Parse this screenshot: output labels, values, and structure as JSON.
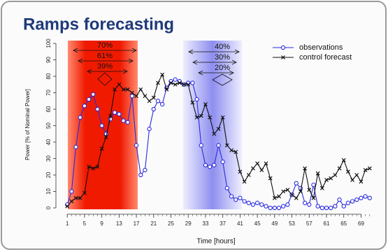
{
  "chart_data": {
    "type": "line",
    "title": "Ramps forecasting",
    "xlabel": "Time [hours]",
    "ylabel": "Power [% of Nominal Power]",
    "x": [
      1,
      2,
      3,
      4,
      5,
      6,
      7,
      8,
      9,
      10,
      11,
      12,
      13,
      14,
      15,
      16,
      17,
      18,
      19,
      20,
      21,
      22,
      23,
      24,
      25,
      26,
      27,
      28,
      29,
      30,
      31,
      32,
      33,
      34,
      35,
      36,
      37,
      38,
      39,
      40,
      41,
      42,
      43,
      44,
      45,
      46,
      47,
      48,
      49,
      50,
      51,
      52,
      53,
      54,
      55,
      56,
      57,
      58,
      59,
      60,
      61,
      62,
      63,
      64,
      65,
      66,
      67,
      68,
      69,
      70,
      71
    ],
    "series": [
      {
        "name": "observations",
        "color": "#2a2adf",
        "marker": "circle",
        "values": [
          2,
          10,
          37,
          55,
          62,
          66,
          69,
          60,
          50,
          45,
          54,
          58,
          57,
          53,
          52,
          68,
          38,
          20,
          23,
          48,
          60,
          65,
          63,
          73,
          77,
          78,
          77,
          75,
          76,
          76,
          66,
          38,
          26,
          25,
          26,
          38,
          28,
          12,
          7,
          5,
          6,
          4,
          3,
          2,
          3,
          2,
          1,
          0,
          0,
          0,
          1,
          2,
          8,
          15,
          12,
          3,
          2,
          14,
          1,
          0,
          0,
          0,
          1,
          5,
          1,
          3,
          4,
          5,
          6,
          7,
          6
        ]
      },
      {
        "name": "control forecast",
        "color": "#111111",
        "marker": "cross",
        "values": [
          1,
          4,
          6,
          6,
          9,
          25,
          24,
          25,
          36,
          43,
          56,
          72,
          75,
          72,
          72,
          70,
          68,
          72,
          68,
          65,
          67,
          76,
          81,
          72,
          76,
          75,
          76,
          75,
          75,
          64,
          55,
          56,
          63,
          55,
          45,
          48,
          55,
          38,
          35,
          34,
          22,
          16,
          20,
          24,
          27,
          23,
          27,
          18,
          6,
          7,
          10,
          11,
          8,
          6,
          10,
          24,
          11,
          6,
          21,
          12,
          17,
          18,
          20,
          24,
          29,
          22,
          17,
          20,
          16,
          23,
          24
        ]
      }
    ],
    "annotations": [
      "70%",
      "61%",
      "39%",
      "40%",
      "30%",
      "20%"
    ],
    "xlim": [
      0,
      72
    ],
    "ylim": [
      0,
      100
    ],
    "xticks": [
      1,
      5,
      9,
      13,
      17,
      21,
      25,
      29,
      33,
      37,
      41,
      45,
      49,
      53,
      57,
      61,
      65,
      69
    ],
    "yticks": [
      0,
      10,
      20,
      30,
      40,
      50,
      60,
      70,
      80,
      90,
      100
    ],
    "legend": "top-right"
  }
}
